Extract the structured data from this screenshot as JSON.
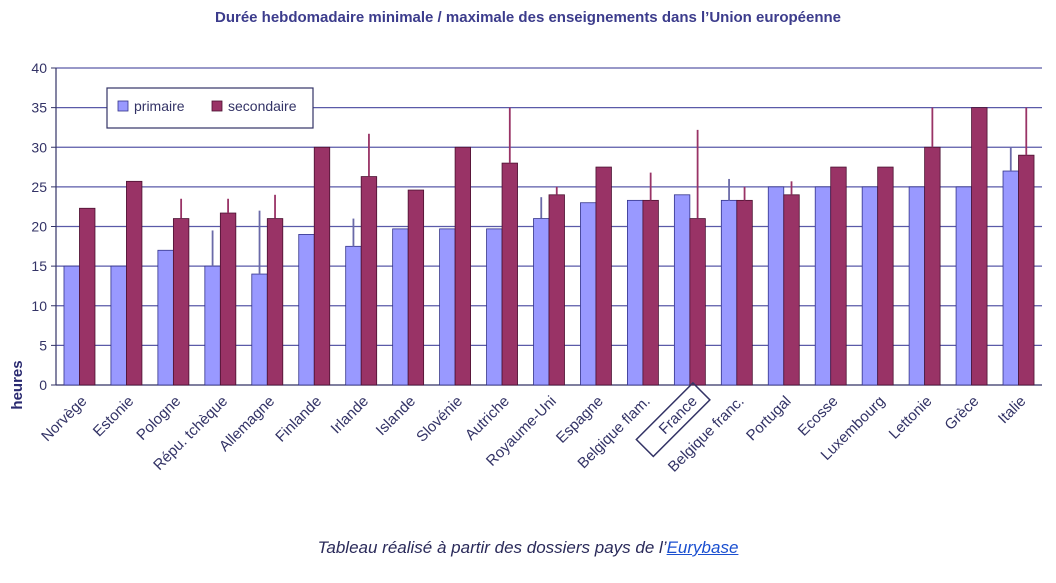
{
  "chart_data": {
    "type": "bar",
    "title": "Durée hebdomadaire minimale / maximale des enseignements dans l’Union européenne",
    "ylabel": "heures",
    "xlabel": "",
    "ylim": [
      0,
      40
    ],
    "yticks": [
      0,
      5,
      10,
      15,
      20,
      25,
      30,
      35,
      40
    ],
    "grid": true,
    "legend_position": "top-left",
    "categories": [
      "Norvège",
      "Estonie",
      "Pologne",
      "Répu. tchèque",
      "Allemagne",
      "Finlande",
      "Irlande",
      "Islande",
      "Slovénie",
      "Autriche",
      "Royaume-Uni",
      "Espagne",
      "Belgique flam.",
      "France",
      "Belgique franc.",
      "Portugal",
      "Ecosse",
      "Luxembourg",
      "Lettonie",
      "Grèce",
      "Italie"
    ],
    "highlighted_category": "France",
    "series": [
      {
        "name": "primaire",
        "color": "#9999ff",
        "values": [
          15,
          15,
          17,
          15,
          14,
          19,
          17.5,
          19.7,
          19.7,
          19.7,
          21,
          23,
          23.3,
          24,
          23.3,
          25,
          25,
          25,
          25,
          25,
          27
        ],
        "max": [
          null,
          null,
          null,
          19.5,
          22,
          null,
          21,
          null,
          null,
          null,
          23.7,
          null,
          null,
          null,
          26,
          null,
          null,
          null,
          null,
          null,
          30
        ]
      },
      {
        "name": "secondaire",
        "color": "#993366",
        "values": [
          22.3,
          25.7,
          21,
          21.7,
          21,
          30,
          26.3,
          24.6,
          30,
          28,
          24,
          27.5,
          23.3,
          21,
          23.3,
          24,
          27.5,
          27.5,
          30,
          35,
          29
        ],
        "max": [
          null,
          null,
          23.5,
          23.5,
          24,
          null,
          31.7,
          null,
          null,
          35,
          25,
          null,
          26.8,
          32.2,
          25,
          25.7,
          null,
          null,
          35,
          null,
          35
        ]
      }
    ]
  },
  "caption": {
    "text": "Tableau réalisé à partir des dossiers pays de l’",
    "link": "Eurybase"
  }
}
